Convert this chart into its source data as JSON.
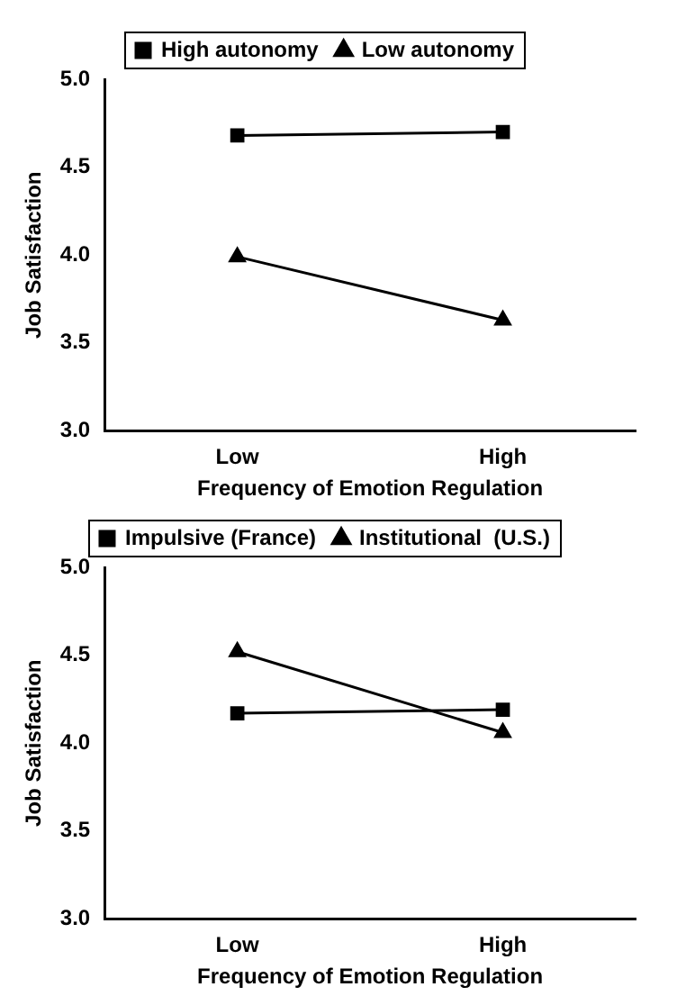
{
  "chart_data": [
    {
      "type": "line",
      "categories": [
        "Low",
        "High"
      ],
      "xlabel": "Frequency of Emotion Regulation",
      "ylabel": "Job Satisfaction",
      "ylim": [
        3,
        5
      ],
      "yticks": [
        {
          "value": 3,
          "label": "3.0"
        },
        {
          "value": 3.5,
          "label": "3.5"
        },
        {
          "value": 4,
          "label": "4.0"
        },
        {
          "value": 4.5,
          "label": "4.5"
        },
        {
          "value": 5,
          "label": "5.0"
        }
      ],
      "grid": false,
      "legend": "top",
      "line_style": "solid",
      "series": [
        {
          "name": "High autonomy",
          "color": "#000000",
          "marker": "square",
          "values": [
            4.68,
            4.7
          ]
        },
        {
          "name": "Low autonomy",
          "color": "#000000",
          "marker": "triangle",
          "values": [
            3.99,
            3.63
          ]
        }
      ]
    },
    {
      "type": "line",
      "categories": [
        "Low",
        "High"
      ],
      "xlabel": "Frequency of Emotion Regulation",
      "ylabel": "Job Satisfaction",
      "ylim": [
        3,
        5
      ],
      "yticks": [
        {
          "value": 3,
          "label": "3.0"
        },
        {
          "value": 3.5,
          "label": "3.5"
        },
        {
          "value": 4,
          "label": "4.0"
        },
        {
          "value": 4.5,
          "label": "4.5"
        },
        {
          "value": 5,
          "label": "5.0"
        }
      ],
      "grid": false,
      "legend": "top",
      "line_style": "solid",
      "series": [
        {
          "name": "Impulsive (France)",
          "color": "#000000",
          "marker": "square",
          "values": [
            4.17,
            4.19
          ]
        },
        {
          "name": "Institutional  (U.S.)",
          "color": "#000000",
          "marker": "triangle",
          "values": [
            4.52,
            4.06
          ]
        }
      ]
    }
  ]
}
